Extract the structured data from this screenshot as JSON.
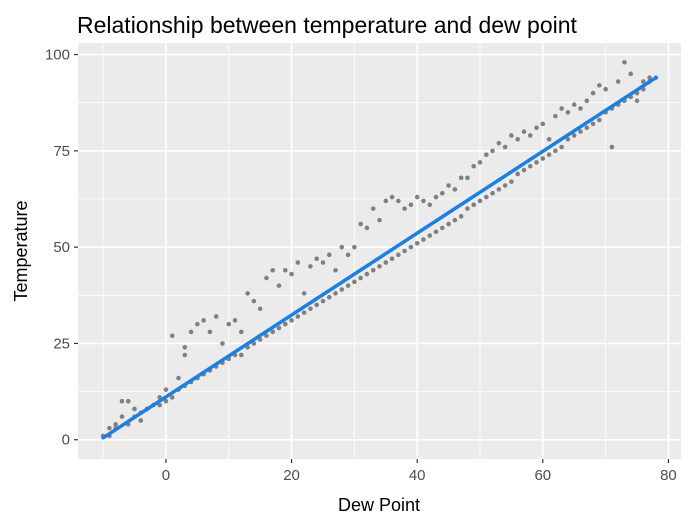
{
  "chart_data": {
    "type": "scatter",
    "title": "Relationship between temperature and dew point",
    "xlabel": "Dew Point",
    "ylabel": "Temperature",
    "xlim": [
      -14,
      82
    ],
    "ylim": [
      -5,
      103
    ],
    "x_ticks": [
      0,
      20,
      40,
      60,
      80
    ],
    "y_ticks": [
      0,
      25,
      50,
      75,
      100
    ],
    "x_tick_labels": [
      "0",
      "20",
      "40",
      "60",
      "80"
    ],
    "y_tick_labels": [
      "0",
      "25",
      "50",
      "75",
      "100"
    ],
    "grid": true,
    "legend": "none",
    "point_color": "#808080",
    "line_color": "#1a80e5",
    "panel_background": "#ebebeb",
    "points": [
      [
        -10,
        1
      ],
      [
        -9,
        3
      ],
      [
        -9,
        1
      ],
      [
        -8,
        4
      ],
      [
        -8,
        3
      ],
      [
        -7,
        6
      ],
      [
        -7,
        10
      ],
      [
        -6,
        10
      ],
      [
        -6,
        4
      ],
      [
        -5,
        6
      ],
      [
        -5,
        8
      ],
      [
        -4,
        7
      ],
      [
        -4,
        5
      ],
      [
        -3,
        8
      ],
      [
        -2,
        9
      ],
      [
        -1,
        9
      ],
      [
        -1,
        11
      ],
      [
        0,
        10
      ],
      [
        0,
        13
      ],
      [
        1,
        11
      ],
      [
        1,
        27
      ],
      [
        2,
        13
      ],
      [
        2,
        16
      ],
      [
        3,
        14
      ],
      [
        3,
        24
      ],
      [
        3,
        22
      ],
      [
        4,
        15
      ],
      [
        4,
        28
      ],
      [
        5,
        16
      ],
      [
        5,
        30
      ],
      [
        6,
        17
      ],
      [
        6,
        31
      ],
      [
        7,
        18
      ],
      [
        7,
        28
      ],
      [
        8,
        19
      ],
      [
        8,
        32
      ],
      [
        9,
        20
      ],
      [
        9,
        25
      ],
      [
        10,
        21
      ],
      [
        10,
        30
      ],
      [
        11,
        22
      ],
      [
        11,
        31
      ],
      [
        12,
        22
      ],
      [
        12,
        28
      ],
      [
        13,
        24
      ],
      [
        13,
        38
      ],
      [
        14,
        25
      ],
      [
        14,
        36
      ],
      [
        15,
        26
      ],
      [
        15,
        34
      ],
      [
        16,
        27
      ],
      [
        16,
        42
      ],
      [
        17,
        28
      ],
      [
        17,
        44
      ],
      [
        18,
        29
      ],
      [
        18,
        40
      ],
      [
        19,
        30
      ],
      [
        19,
        44
      ],
      [
        20,
        31
      ],
      [
        20,
        43
      ],
      [
        21,
        32
      ],
      [
        21,
        46
      ],
      [
        22,
        33
      ],
      [
        22,
        38
      ],
      [
        23,
        34
      ],
      [
        23,
        45
      ],
      [
        24,
        35
      ],
      [
        24,
        47
      ],
      [
        25,
        36
      ],
      [
        25,
        46
      ],
      [
        26,
        37
      ],
      [
        26,
        48
      ],
      [
        27,
        38
      ],
      [
        27,
        44
      ],
      [
        28,
        39
      ],
      [
        28,
        50
      ],
      [
        29,
        40
      ],
      [
        29,
        48
      ],
      [
        30,
        41
      ],
      [
        30,
        50
      ],
      [
        31,
        42
      ],
      [
        31,
        56
      ],
      [
        32,
        43
      ],
      [
        32,
        55
      ],
      [
        33,
        44
      ],
      [
        33,
        60
      ],
      [
        34,
        45
      ],
      [
        34,
        57
      ],
      [
        35,
        46
      ],
      [
        35,
        62
      ],
      [
        36,
        47
      ],
      [
        36,
        63
      ],
      [
        37,
        48
      ],
      [
        37,
        62
      ],
      [
        38,
        49
      ],
      [
        38,
        60
      ],
      [
        39,
        50
      ],
      [
        39,
        61
      ],
      [
        40,
        51
      ],
      [
        40,
        63
      ],
      [
        41,
        52
      ],
      [
        41,
        62
      ],
      [
        42,
        53
      ],
      [
        42,
        61
      ],
      [
        43,
        54
      ],
      [
        43,
        63
      ],
      [
        44,
        55
      ],
      [
        44,
        64
      ],
      [
        45,
        56
      ],
      [
        45,
        66
      ],
      [
        46,
        57
      ],
      [
        46,
        65
      ],
      [
        47,
        58
      ],
      [
        47,
        68
      ],
      [
        48,
        60
      ],
      [
        48,
        68
      ],
      [
        49,
        61
      ],
      [
        49,
        71
      ],
      [
        50,
        62
      ],
      [
        50,
        72
      ],
      [
        51,
        63
      ],
      [
        51,
        74
      ],
      [
        52,
        64
      ],
      [
        52,
        75
      ],
      [
        53,
        65
      ],
      [
        53,
        77
      ],
      [
        54,
        66
      ],
      [
        54,
        76
      ],
      [
        55,
        67
      ],
      [
        55,
        79
      ],
      [
        56,
        69
      ],
      [
        56,
        78
      ],
      [
        57,
        70
      ],
      [
        57,
        80
      ],
      [
        58,
        71
      ],
      [
        58,
        79
      ],
      [
        59,
        72
      ],
      [
        59,
        81
      ],
      [
        60,
        73
      ],
      [
        60,
        82
      ],
      [
        61,
        74
      ],
      [
        61,
        78
      ],
      [
        62,
        75
      ],
      [
        62,
        84
      ],
      [
        63,
        76
      ],
      [
        63,
        86
      ],
      [
        64,
        78
      ],
      [
        64,
        85
      ],
      [
        65,
        79
      ],
      [
        65,
        87
      ],
      [
        66,
        80
      ],
      [
        66,
        86
      ],
      [
        67,
        81
      ],
      [
        67,
        88
      ],
      [
        68,
        82
      ],
      [
        68,
        90
      ],
      [
        69,
        83
      ],
      [
        69,
        92
      ],
      [
        70,
        85
      ],
      [
        70,
        91
      ],
      [
        71,
        86
      ],
      [
        71,
        76
      ],
      [
        72,
        87
      ],
      [
        72,
        93
      ],
      [
        73,
        88
      ],
      [
        73,
        98
      ],
      [
        74,
        89
      ],
      [
        74,
        95
      ],
      [
        75,
        90
      ],
      [
        75,
        88
      ],
      [
        76,
        91
      ],
      [
        76,
        93
      ],
      [
        77,
        93
      ],
      [
        77,
        94
      ],
      [
        78,
        94
      ]
    ],
    "fit_line": {
      "x": [
        -10,
        78
      ],
      "y": [
        0.5,
        94
      ]
    }
  }
}
